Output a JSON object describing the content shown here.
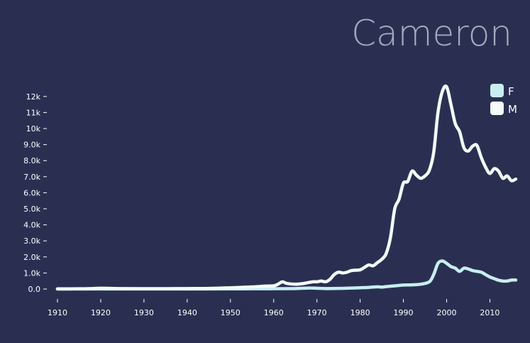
{
  "chart_data": {
    "type": "line",
    "title": "Cameron",
    "xlabel": "",
    "ylabel": "",
    "xlim": [
      1910,
      2016
    ],
    "ylim": [
      0,
      12700
    ],
    "grid": false,
    "legend_position": "top-right",
    "x_ticks": [
      1910,
      1920,
      1930,
      1940,
      1950,
      1960,
      1970,
      1980,
      1990,
      2000,
      2010
    ],
    "x_tick_labels": [
      "1910",
      "1920",
      "1930",
      "1940",
      "1950",
      "1960",
      "1970",
      "1980",
      "1990",
      "2000",
      "2010"
    ],
    "y_ticks": [
      0,
      1000,
      2000,
      3000,
      4000,
      5000,
      6000,
      7000,
      8000,
      9000,
      10000,
      11000,
      12000
    ],
    "y_tick_labels": [
      "0.0",
      "1.0k",
      "2.0k",
      "3.0k",
      "4.0k",
      "5.0k",
      "6.0k",
      "7.0k",
      "8.0k",
      "9.0k",
      "10k",
      "11k",
      "12k"
    ],
    "series": [
      {
        "name": "F",
        "color": "#c8eef0",
        "points": [
          [
            1910,
            0
          ],
          [
            1920,
            5
          ],
          [
            1930,
            5
          ],
          [
            1940,
            5
          ],
          [
            1950,
            10
          ],
          [
            1955,
            15
          ],
          [
            1960,
            20
          ],
          [
            1965,
            30
          ],
          [
            1968,
            60
          ],
          [
            1970,
            50
          ],
          [
            1972,
            30
          ],
          [
            1975,
            40
          ],
          [
            1978,
            60
          ],
          [
            1980,
            80
          ],
          [
            1982,
            100
          ],
          [
            1984,
            140
          ],
          [
            1985,
            120
          ],
          [
            1986,
            150
          ],
          [
            1988,
            200
          ],
          [
            1990,
            250
          ],
          [
            1992,
            260
          ],
          [
            1994,
            300
          ],
          [
            1996,
            450
          ],
          [
            1997,
            900
          ],
          [
            1998,
            1600
          ],
          [
            1999,
            1750
          ],
          [
            2000,
            1600
          ],
          [
            2001,
            1400
          ],
          [
            2002,
            1300
          ],
          [
            2003,
            1100
          ],
          [
            2004,
            1300
          ],
          [
            2005,
            1250
          ],
          [
            2006,
            1150
          ],
          [
            2007,
            1100
          ],
          [
            2008,
            1050
          ],
          [
            2009,
            900
          ],
          [
            2010,
            750
          ],
          [
            2011,
            650
          ],
          [
            2012,
            550
          ],
          [
            2013,
            500
          ],
          [
            2014,
            500
          ],
          [
            2015,
            560
          ],
          [
            2016,
            560
          ]
        ]
      },
      {
        "name": "M",
        "color": "#f4fbfb",
        "points": [
          [
            1910,
            10
          ],
          [
            1915,
            15
          ],
          [
            1918,
            30
          ],
          [
            1920,
            50
          ],
          [
            1925,
            30
          ],
          [
            1930,
            25
          ],
          [
            1935,
            25
          ],
          [
            1940,
            30
          ],
          [
            1945,
            40
          ],
          [
            1950,
            80
          ],
          [
            1955,
            130
          ],
          [
            1958,
            180
          ],
          [
            1960,
            200
          ],
          [
            1961,
            300
          ],
          [
            1962,
            450
          ],
          [
            1963,
            350
          ],
          [
            1965,
            300
          ],
          [
            1967,
            350
          ],
          [
            1969,
            450
          ],
          [
            1970,
            450
          ],
          [
            1971,
            500
          ],
          [
            1972,
            450
          ],
          [
            1973,
            600
          ],
          [
            1974,
            900
          ],
          [
            1975,
            1050
          ],
          [
            1976,
            1000
          ],
          [
            1977,
            1050
          ],
          [
            1978,
            1150
          ],
          [
            1980,
            1200
          ],
          [
            1981,
            1350
          ],
          [
            1982,
            1500
          ],
          [
            1983,
            1450
          ],
          [
            1984,
            1650
          ],
          [
            1985,
            1850
          ],
          [
            1986,
            2200
          ],
          [
            1987,
            3200
          ],
          [
            1988,
            5000
          ],
          [
            1989,
            5600
          ],
          [
            1990,
            6600
          ],
          [
            1991,
            6700
          ],
          [
            1992,
            7350
          ],
          [
            1993,
            7100
          ],
          [
            1994,
            6900
          ],
          [
            1995,
            7050
          ],
          [
            1996,
            7400
          ],
          [
            1997,
            8500
          ],
          [
            1998,
            11000
          ],
          [
            1999,
            12300
          ],
          [
            2000,
            12600
          ],
          [
            2001,
            11500
          ],
          [
            2002,
            10300
          ],
          [
            2003,
            9800
          ],
          [
            2004,
            8800
          ],
          [
            2005,
            8600
          ],
          [
            2006,
            8900
          ],
          [
            2007,
            8950
          ],
          [
            2008,
            8200
          ],
          [
            2009,
            7600
          ],
          [
            2010,
            7200
          ],
          [
            2011,
            7500
          ],
          [
            2012,
            7350
          ],
          [
            2013,
            6900
          ],
          [
            2014,
            7050
          ],
          [
            2015,
            6750
          ],
          [
            2016,
            6850
          ]
        ]
      }
    ]
  }
}
